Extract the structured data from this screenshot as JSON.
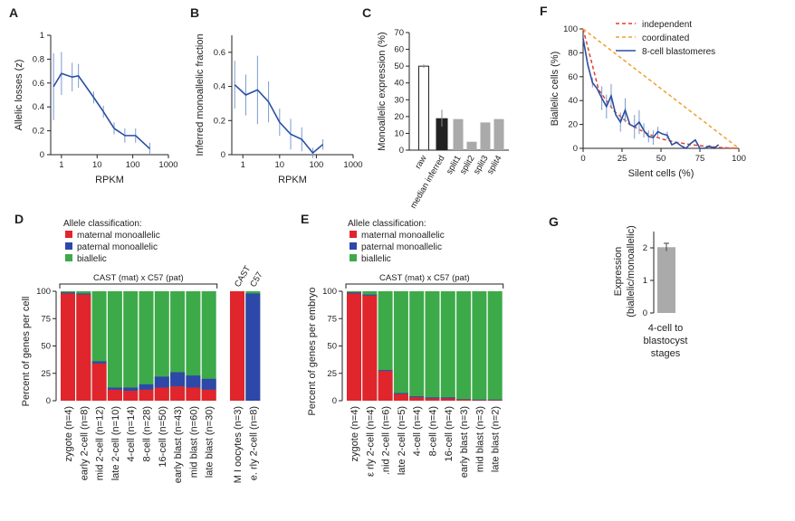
{
  "colors": {
    "line": "#2a4fa0",
    "maternal": "#e0252c",
    "paternal": "#2d48a8",
    "biallelic": "#3daa4a",
    "independent": "#e63a2e",
    "coordinated": "#f0a030",
    "grey_bar": "#aaaaaa",
    "dark_bar": "#222222"
  },
  "chart_data": [
    {
      "panel": "A",
      "type": "line",
      "xlabel": "RPKM",
      "ylabel": "Allelic losses (z)",
      "xscale": "log",
      "xlim": [
        0.5,
        1000
      ],
      "ylim": [
        0,
        1
      ],
      "xticks": [
        "1",
        "10",
        "100",
        "1000"
      ],
      "yticks": [
        "0",
        "0.2",
        "0.4",
        "0.6",
        "0.8",
        "1"
      ],
      "x": [
        0.6,
        1,
        2,
        3,
        8,
        15,
        30,
        60,
        120,
        300
      ],
      "y": [
        0.57,
        0.68,
        0.65,
        0.66,
        0.48,
        0.36,
        0.22,
        0.16,
        0.16,
        0.05
      ],
      "err": [
        0.28,
        0.18,
        0.12,
        0.1,
        0.05,
        0.05,
        0.05,
        0.06,
        0.06,
        0.05
      ]
    },
    {
      "panel": "B",
      "type": "line",
      "xlabel": "RPKM",
      "ylabel": "Inferred monoallelic fraction",
      "xscale": "log",
      "xlim": [
        0.5,
        1000
      ],
      "ylim": [
        0,
        0.7
      ],
      "xticks": [
        "1",
        "10",
        "100",
        "1000"
      ],
      "yticks": [
        "0",
        "0.2",
        "0.4",
        "0.6"
      ],
      "x": [
        0.6,
        1.2,
        2.5,
        5,
        10,
        20,
        40,
        80,
        150
      ],
      "y": [
        0.41,
        0.35,
        0.38,
        0.31,
        0.19,
        0.12,
        0.09,
        0.01,
        0.06
      ],
      "err": [
        0.14,
        0.12,
        0.2,
        0.12,
        0.08,
        0.09,
        0.07,
        0.03,
        0.03
      ]
    },
    {
      "panel": "C",
      "type": "bar",
      "ylabel": "Monoallelic expression (%)",
      "ylim": [
        0,
        70
      ],
      "yticks": [
        "0",
        "10",
        "20",
        "30",
        "40",
        "50",
        "60",
        "70"
      ],
      "categories": [
        "raw",
        "median inferred",
        "split1",
        "split2",
        "split3",
        "split4"
      ],
      "values": [
        50,
        19,
        18.5,
        5,
        16.5,
        18.5
      ],
      "err": [
        1,
        5,
        0,
        0,
        0,
        0
      ],
      "styles": [
        "open",
        "black",
        "grey",
        "grey",
        "grey",
        "grey"
      ]
    },
    {
      "panel": "F",
      "type": "line",
      "xlabel": "Silent cells (%)",
      "ylabel": "Biallelic cells (%)",
      "xlim": [
        0,
        100
      ],
      "ylim": [
        0,
        100
      ],
      "xticks": [
        "0",
        "25",
        "50",
        "75",
        "100"
      ],
      "yticks": [
        "0",
        "20",
        "40",
        "60",
        "80",
        "100"
      ],
      "legend": [
        "independent",
        "coordinated",
        "8-cell blastomeres"
      ],
      "series": [
        {
          "name": "independent",
          "x": [
            0,
            10,
            20,
            30,
            40,
            50,
            60,
            70,
            80,
            90,
            100
          ],
          "y": [
            100,
            49,
            31,
            20,
            13,
            8,
            5,
            3,
            1.5,
            0.5,
            0
          ]
        },
        {
          "name": "coordinated",
          "x": [
            0,
            100
          ],
          "y": [
            100,
            0
          ]
        },
        {
          "name": "8-cell blastomeres",
          "x": [
            0,
            3,
            6,
            9,
            12,
            15,
            18,
            21,
            24,
            27,
            30,
            33,
            36,
            39,
            42,
            45,
            48,
            51,
            54,
            57,
            60,
            63,
            66,
            69,
            72,
            75,
            78,
            81,
            84,
            87
          ],
          "y": [
            92,
            70,
            55,
            50,
            42,
            35,
            44,
            28,
            22,
            32,
            20,
            18,
            22,
            15,
            10,
            9,
            14,
            12,
            11,
            3,
            5,
            2,
            0,
            4,
            7,
            0,
            0,
            2,
            0,
            3
          ],
          "err": [
            0,
            0,
            4,
            0,
            10,
            10,
            10,
            0,
            8,
            10,
            0,
            10,
            10,
            6,
            5,
            6,
            4,
            0,
            3,
            0,
            0,
            0,
            0,
            0,
            0,
            0,
            0,
            0,
            0,
            0
          ]
        }
      ]
    },
    {
      "panel": "D",
      "type": "bar",
      "ylabel": "Percent of genes per cell",
      "ylim": [
        0,
        100
      ],
      "yticks": [
        "0",
        "25",
        "50",
        "75",
        "100"
      ],
      "legend_title": "Allele classification:",
      "legend": [
        "maternal monoallelic",
        "paternal monoallelic",
        "biallelic"
      ],
      "group_label": "CAST (mat) x C57 (pat)",
      "categories": [
        "zygote (n=4)",
        "early 2-cell (n=8)",
        "mid 2-cell (n=12)",
        "late 2-cell (n=10)",
        "4-cell (n=14)",
        "8-cell (n=28)",
        "16-cell (n=50)",
        "early blast (n=43)",
        "mid blast (n=60)",
        "late blast (n=30)"
      ],
      "maternal": [
        98,
        97,
        34,
        10,
        9,
        10,
        12,
        13,
        12,
        10
      ],
      "paternal": [
        1,
        1,
        2,
        2,
        3,
        5,
        10,
        13,
        11,
        10
      ],
      "extra_labels": [
        "CAST",
        "C57"
      ],
      "extra_categories": [
        "M I oocytes (n=3)",
        "e. rly 2-cell (n=8)"
      ],
      "extra_maternal": [
        100,
        0
      ],
      "extra_paternal": [
        0,
        98
      ]
    },
    {
      "panel": "E",
      "type": "bar",
      "ylabel": "Percent of genes per embryo",
      "ylim": [
        0,
        100
      ],
      "yticks": [
        "0",
        "25",
        "50",
        "75",
        "100"
      ],
      "legend_title": "Allele classification:",
      "legend": [
        "maternal monoallelic",
        "paternal monoallelic",
        "biallelic"
      ],
      "group_label": "CAST (mat) x C57 (pat)",
      "categories": [
        "zygote (n=4)",
        "ε rly 2-cell (n=4)",
        ".nid 2-cell (n=6)",
        "late 2-cell (n=5)",
        "4-cell (n=4)",
        "8-cell (n=4)",
        "16-cell (n=4)",
        "early blast (n=3)",
        "mid blast (n=3)",
        "late blast (n=2)"
      ],
      "maternal": [
        98,
        96,
        27,
        6,
        3,
        2,
        2,
        1,
        0.5,
        0.5
      ],
      "paternal": [
        1,
        1,
        1,
        1,
        1,
        1,
        1,
        0.5,
        0.5,
        0.5
      ]
    },
    {
      "panel": "G",
      "type": "bar",
      "ylabel": "Expression (biallelic/monoallelic)",
      "ylim": [
        0,
        2.5
      ],
      "yticks": [
        "0",
        "1",
        "2"
      ],
      "categories": [
        "4-cell to blastocyst stages"
      ],
      "values": [
        2.02
      ],
      "err": [
        0.12
      ]
    }
  ]
}
